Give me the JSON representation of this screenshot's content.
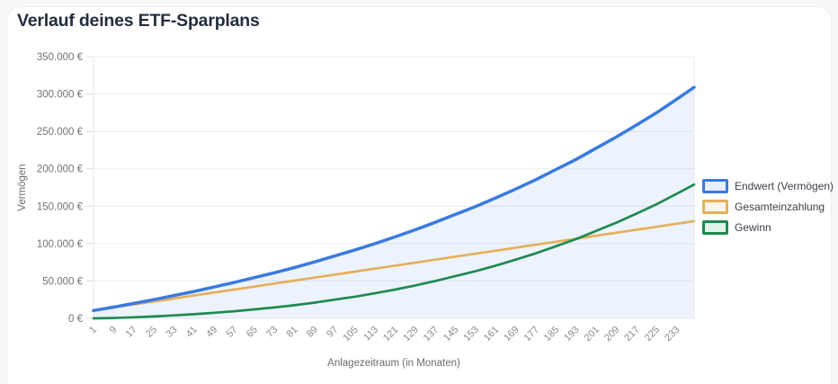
{
  "page": {
    "title": "Verlauf deines ETF-Sparplans"
  },
  "chart_data": {
    "type": "line",
    "title": "Verlauf deines ETF-Sparplans",
    "xlabel": "Anlagezeitraum (in Monaten)",
    "ylabel": "Vermögen",
    "xlim": [
      1,
      240
    ],
    "ylim": [
      0,
      350000
    ],
    "grid": "horizontal",
    "legend_position": "right",
    "y_tick_values": [
      0,
      50000,
      100000,
      150000,
      200000,
      250000,
      300000,
      350000
    ],
    "y_tick_labels": [
      "0 €",
      "50.000 €",
      "100.000 €",
      "150.000 €",
      "200.000 €",
      "250.000 €",
      "300.000 €",
      "350.000 €"
    ],
    "x_tick_values": [
      1,
      9,
      17,
      25,
      33,
      41,
      49,
      57,
      65,
      73,
      81,
      89,
      97,
      105,
      113,
      121,
      129,
      137,
      145,
      153,
      161,
      169,
      177,
      185,
      193,
      201,
      209,
      217,
      225,
      233
    ],
    "x_tick_labels": [
      "1",
      "9",
      "17",
      "25",
      "33",
      "41",
      "49",
      "57",
      "65",
      "73",
      "81",
      "89",
      "97",
      "105",
      "113",
      "121",
      "129",
      "137",
      "145",
      "153",
      "161",
      "169",
      "177",
      "185",
      "193",
      "201",
      "209",
      "217",
      "225",
      "233"
    ],
    "x": [
      1,
      9,
      17,
      25,
      33,
      41,
      49,
      57,
      65,
      73,
      81,
      89,
      97,
      105,
      113,
      121,
      129,
      137,
      145,
      153,
      161,
      169,
      177,
      185,
      193,
      201,
      209,
      217,
      225,
      233,
      240
    ],
    "series": [
      {
        "name": "Endwert (Vermögen)",
        "color": "#3a7ae0",
        "fill": true,
        "values": [
          10500,
          15000,
          20000,
          25000,
          30500,
          36000,
          42000,
          48000,
          54500,
          61000,
          68000,
          75500,
          83500,
          91500,
          100000,
          109000,
          118500,
          128500,
          139000,
          149500,
          161000,
          173000,
          185500,
          199000,
          212500,
          227500,
          242500,
          258500,
          275000,
          293000,
          309000
        ]
      },
      {
        "name": "Gesamteinzahlung",
        "color": "#e6af5a",
        "fill": false,
        "values": [
          10500,
          14500,
          18500,
          22500,
          26500,
          30500,
          34500,
          38500,
          42500,
          46500,
          50500,
          54500,
          58500,
          62500,
          66500,
          70500,
          74500,
          78500,
          82500,
          86500,
          90500,
          94500,
          98500,
          102500,
          106500,
          110500,
          114500,
          118500,
          122500,
          126500,
          130000
        ]
      },
      {
        "name": "Gewinn",
        "color": "#1f8a50",
        "fill": false,
        "values": [
          0,
          500,
          1500,
          2500,
          4000,
          5500,
          7500,
          9500,
          12000,
          14500,
          17500,
          21000,
          25000,
          29000,
          33500,
          38500,
          44000,
          50000,
          56500,
          63000,
          70500,
          78500,
          87000,
          96500,
          106000,
          117000,
          128000,
          140000,
          152500,
          166500,
          179000
        ]
      }
    ]
  }
}
